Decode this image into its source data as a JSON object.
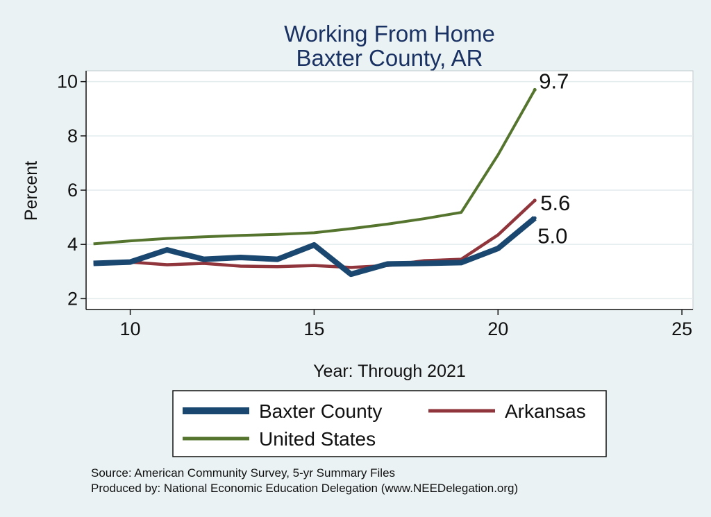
{
  "chart_data": {
    "type": "line",
    "title": [
      "Working From Home",
      "Baxter County, AR"
    ],
    "xlabel": "Year: Through 2021",
    "ylabel": "Percent",
    "xlim": [
      8.8,
      25.3
    ],
    "ylim": [
      1.6,
      10.4
    ],
    "xticks": [
      10,
      15,
      20,
      25
    ],
    "yticks": [
      2,
      4,
      6,
      8,
      10
    ],
    "grid": true,
    "legend_position": "bottom",
    "series": [
      {
        "name": "Baxter County",
        "color": "#1a476f",
        "x": [
          9,
          10,
          11,
          12,
          13,
          14,
          15,
          16,
          17,
          18,
          19,
          20,
          21
        ],
        "values": [
          3.3,
          3.35,
          3.8,
          3.45,
          3.52,
          3.45,
          3.98,
          2.9,
          3.28,
          3.3,
          3.33,
          3.85,
          4.97
        ]
      },
      {
        "name": "Arkansas",
        "color": "#90353b",
        "x": [
          9,
          10,
          11,
          12,
          13,
          14,
          15,
          16,
          17,
          18,
          19,
          20,
          21
        ],
        "values": [
          3.3,
          3.35,
          3.25,
          3.3,
          3.2,
          3.18,
          3.22,
          3.15,
          3.22,
          3.4,
          3.45,
          4.35,
          5.62
        ]
      },
      {
        "name": "United States",
        "color": "#55752f",
        "x": [
          9,
          10,
          11,
          12,
          13,
          14,
          15,
          16,
          17,
          18,
          19,
          20,
          21
        ],
        "values": [
          4.02,
          4.13,
          4.22,
          4.28,
          4.33,
          4.37,
          4.43,
          4.58,
          4.75,
          4.95,
          5.18,
          7.3,
          9.7
        ]
      }
    ],
    "end_labels": [
      {
        "series": "United States",
        "text": "9.7"
      },
      {
        "series": "Arkansas",
        "text": "5.6"
      },
      {
        "series": "Baxter County",
        "text": "5.0"
      }
    ]
  },
  "source": [
    "Source: American Community Survey, 5-yr Summary Files",
    "Produced by: National Economic Education Delegation (www.NEEDelegation.org)"
  ]
}
